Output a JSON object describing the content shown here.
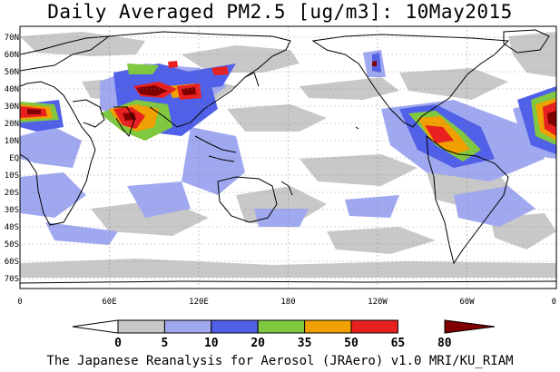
{
  "title": "Daily Averaged PM2.5 [ug/m3]: 10May2015",
  "footer": "The Japanese Reanalysis for Aerosol (JRAero) v1.0 MRI/KU_RIAM",
  "lat_labels": [
    "70N",
    "60N",
    "50N",
    "40N",
    "30N",
    "20N",
    "10N",
    "EQ",
    "10S",
    "20S",
    "30S",
    "40S",
    "50S",
    "60S",
    "70S"
  ],
  "lon_labels": [
    "0",
    "60E",
    "120E",
    "180",
    "120W",
    "60W",
    "0"
  ],
  "colorbar": {
    "ticks": [
      "0",
      "5",
      "10",
      "20",
      "35",
      "50",
      "65",
      "80"
    ],
    "colors": [
      "#ffffff",
      "#c8c8c8",
      "#a0a8f0",
      "#5060e8",
      "#80c840",
      "#f0a000",
      "#e82020",
      "#800000"
    ]
  }
}
